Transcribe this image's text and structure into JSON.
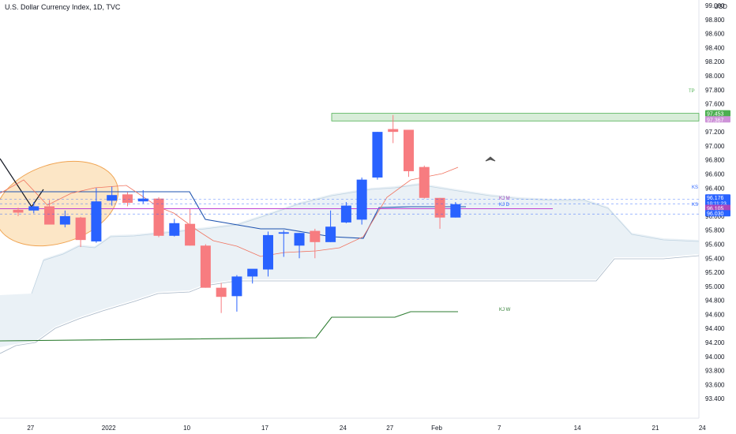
{
  "header": {
    "title": "U.S. Dollar Currency Index, 1D, TVC"
  },
  "chart_data": {
    "type": "candlestick",
    "currency_label": "USD",
    "ylim": [
      93.2,
      99.0
    ],
    "y_ticks": [
      "99.000",
      "98.800",
      "98.600",
      "98.400",
      "98.200",
      "98.000",
      "97.800",
      "97.600",
      "97.400",
      "97.200",
      "97.000",
      "96.800",
      "96.600",
      "96.400",
      "96.200",
      "96.000",
      "95.800",
      "95.600",
      "95.400",
      "95.200",
      "95.000",
      "94.800",
      "94.600",
      "94.400",
      "94.200",
      "94.000",
      "93.800",
      "93.600",
      "93.400"
    ],
    "x_ticks": [
      {
        "label": "27",
        "idx": 1
      },
      {
        "label": "2022",
        "idx": 6
      },
      {
        "label": "10",
        "idx": 11
      },
      {
        "label": "17",
        "idx": 16
      },
      {
        "label": "24",
        "idx": 21
      },
      {
        "label": "27",
        "idx": 24
      },
      {
        "label": "Feb",
        "idx": 27
      },
      {
        "label": "7",
        "idx": 31
      },
      {
        "label": "14",
        "idx": 36
      },
      {
        "label": "21",
        "idx": 41
      },
      {
        "label": "24",
        "idx": 44
      }
    ],
    "candles": [
      {
        "o": 96.09,
        "h": 96.12,
        "l": 96.0,
        "c": 96.05
      },
      {
        "o": 96.08,
        "h": 96.2,
        "l": 96.04,
        "c": 96.14
      },
      {
        "o": 96.14,
        "h": 96.23,
        "l": 95.92,
        "c": 95.88
      },
      {
        "o": 95.88,
        "h": 96.08,
        "l": 95.84,
        "c": 96.0
      },
      {
        "o": 95.98,
        "h": 95.99,
        "l": 95.56,
        "c": 95.66
      },
      {
        "o": 95.64,
        "h": 96.4,
        "l": 95.62,
        "c": 96.21
      },
      {
        "o": 96.22,
        "h": 96.42,
        "l": 96.15,
        "c": 96.3
      },
      {
        "o": 96.31,
        "h": 96.34,
        "l": 96.14,
        "c": 96.19
      },
      {
        "o": 96.21,
        "h": 96.37,
        "l": 96.18,
        "c": 96.25
      },
      {
        "o": 96.25,
        "h": 96.27,
        "l": 95.7,
        "c": 95.72
      },
      {
        "o": 95.72,
        "h": 95.96,
        "l": 95.71,
        "c": 95.9
      },
      {
        "o": 95.89,
        "h": 96.1,
        "l": 95.58,
        "c": 95.58
      },
      {
        "o": 95.58,
        "h": 95.6,
        "l": 94.98,
        "c": 94.98
      },
      {
        "o": 94.98,
        "h": 95.05,
        "l": 94.62,
        "c": 94.85
      },
      {
        "o": 94.86,
        "h": 95.16,
        "l": 94.64,
        "c": 95.14
      },
      {
        "o": 95.14,
        "h": 95.24,
        "l": 95.04,
        "c": 95.25
      },
      {
        "o": 95.24,
        "h": 95.78,
        "l": 95.14,
        "c": 95.73
      },
      {
        "o": 95.75,
        "h": 95.8,
        "l": 95.42,
        "c": 95.77
      },
      {
        "o": 95.58,
        "h": 95.76,
        "l": 95.4,
        "c": 95.76
      },
      {
        "o": 95.79,
        "h": 95.82,
        "l": 95.4,
        "c": 95.63
      },
      {
        "o": 95.63,
        "h": 96.08,
        "l": 95.63,
        "c": 95.85
      },
      {
        "o": 95.91,
        "h": 96.2,
        "l": 95.9,
        "c": 96.15
      },
      {
        "o": 95.95,
        "h": 96.55,
        "l": 95.88,
        "c": 96.52
      },
      {
        "o": 96.55,
        "h": 97.2,
        "l": 96.52,
        "c": 97.2
      },
      {
        "o": 97.24,
        "h": 97.44,
        "l": 97.04,
        "c": 97.2
      },
      {
        "o": 97.23,
        "h": 97.23,
        "l": 96.56,
        "c": 96.64
      },
      {
        "o": 96.7,
        "h": 96.72,
        "l": 96.25,
        "c": 96.26
      },
      {
        "o": 96.26,
        "h": 96.26,
        "l": 95.82,
        "c": 95.98
      },
      {
        "o": 95.98,
        "h": 96.2,
        "l": 95.98,
        "c": 96.17
      }
    ],
    "horizontal_levels": [
      {
        "name": "TP",
        "value": 97.453,
        "label": "97.453",
        "color": "#4caf50"
      },
      {
        "name": "R1",
        "value": 97.367,
        "label": "97.367",
        "color": "#ce93d8"
      },
      {
        "name": "KS",
        "value": 96.24,
        "label": "96.240",
        "color": "#2962ff"
      },
      {
        "name": "Price",
        "value": 96.176,
        "label": "96.176",
        "countdown": "10:11:23",
        "color": "#2962ff"
      },
      {
        "name": "KJ M",
        "value": 96.105,
        "label": "96.105",
        "color": "#ab47bc"
      },
      {
        "name": "KJ D",
        "value": 96.03,
        "label": "96.030",
        "color": "#2962ff"
      }
    ],
    "line_labels": [
      "KS",
      "KJ M",
      "KJ D",
      "KJ W",
      "KS",
      "TP"
    ],
    "colors": {
      "up": "#2962ff",
      "down": "#f77c80",
      "kijun": "#1e53b0",
      "tenkan": "#f0735f",
      "weekly": "#2e7d32",
      "cloud": "#e8f0f5",
      "magenta": "#c040d0"
    }
  }
}
